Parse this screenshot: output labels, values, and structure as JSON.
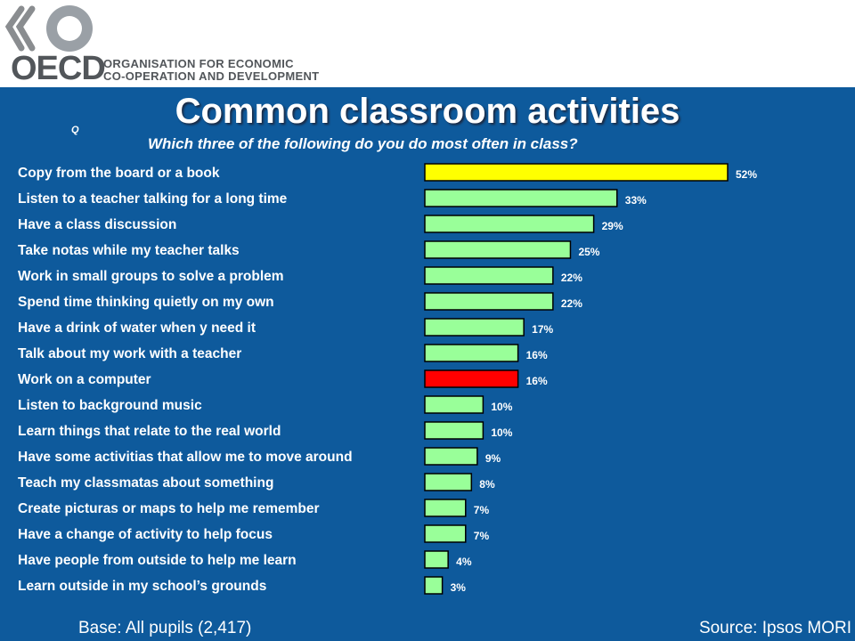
{
  "logo": {
    "wordmark": "OECD",
    "org_line1": "ORGANISATION FOR ECONOMIC",
    "org_line2": "CO-OPERATION AND DEVELOPMENT"
  },
  "question_marker": "Q",
  "footer": {
    "base": "Base:    All pupils  (2,417)",
    "source": "Source: Ipsos MORI"
  },
  "chart_data": {
    "type": "bar",
    "orientation": "horizontal",
    "title": "Common classroom activities",
    "subtitle": "Which three of the following do you do most often in class?",
    "categories": [
      "Copy from the board or a book",
      "Listen to a teacher talking for a long  time",
      "Have a class discussion",
      "Take notas while my teacher talks",
      "Work in small groups to solve a problem",
      "Spend time thinking quietly on my own",
      "Have a drink of water when y need  it",
      "Talk about my work with a teacher",
      "Work on a computer",
      "Listen to background music",
      "Learn things that relate to the real world",
      "Have some activitias that allow me to move around",
      "Teach my classmatas about something",
      "Create picturas or maps to help me remember",
      "Have a change of activity to help focus",
      "Have people from outside to help me  learn",
      "Learn outside in my school’s grounds"
    ],
    "values": [
      52,
      33,
      29,
      25,
      22,
      22,
      17,
      16,
      16,
      10,
      10,
      9,
      8,
      7,
      7,
      4,
      3
    ],
    "value_labels": [
      "52%",
      "33%",
      "29%",
      "25%",
      "22%",
      "22%",
      "17%",
      "16%",
      "16%",
      "10%",
      "10%",
      "9%",
      "8%",
      "7%",
      "7%",
      "4%",
      "3%"
    ],
    "bar_colors": [
      "#ffff00",
      "#99ff99",
      "#99ff99",
      "#99ff99",
      "#99ff99",
      "#99ff99",
      "#99ff99",
      "#99ff99",
      "#ff0000",
      "#99ff99",
      "#99ff99",
      "#99ff99",
      "#99ff99",
      "#99ff99",
      "#99ff99",
      "#99ff99",
      "#99ff99"
    ],
    "xlim": [
      0,
      52
    ],
    "grid": false,
    "legend": "none"
  }
}
